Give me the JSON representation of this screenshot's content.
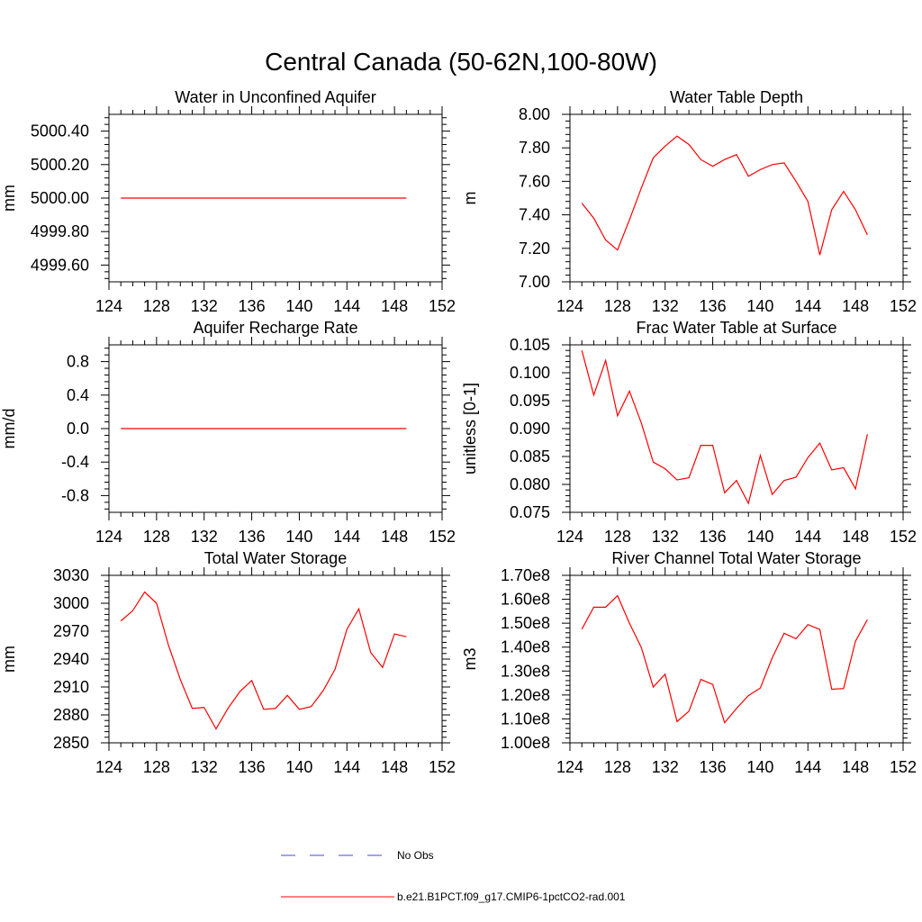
{
  "figure": {
    "title": "Central Canada (50-62N,100-80W)",
    "colors": {
      "series": "#ff0000",
      "obs": "#4a4ac8",
      "axis": "#000000"
    },
    "legend": [
      {
        "label": "No Obs",
        "style": "dashed",
        "color": "#4a4ac8"
      },
      {
        "label": "b.e21.B1PCT.f09_g17.CMIP6-1pctCO2-rad.001",
        "style": "solid",
        "color": "#ff0000"
      }
    ]
  },
  "chart_data": [
    {
      "type": "line",
      "title": "Water in Unconfined Aquifer",
      "xlabel": "",
      "ylabel": "mm",
      "xlim": [
        124,
        152
      ],
      "ylim": [
        4999.5,
        5000.5
      ],
      "xticks": [
        124,
        128,
        132,
        136,
        140,
        144,
        148,
        152
      ],
      "yticks": [
        4999.6,
        4999.8,
        5000.0,
        5000.2,
        5000.4
      ],
      "ytick_labels": [
        "4999.60",
        "4999.80",
        "5000.00",
        "5000.20",
        "5000.40"
      ],
      "x": [
        125,
        149
      ],
      "series": [
        {
          "values": [
            5000.0,
            5000.0
          ]
        }
      ]
    },
    {
      "type": "line",
      "title": "Water Table Depth",
      "xlabel": "",
      "ylabel": "m",
      "xlim": [
        124,
        152
      ],
      "ylim": [
        7.0,
        8.0
      ],
      "xticks": [
        124,
        128,
        132,
        136,
        140,
        144,
        148,
        152
      ],
      "yticks": [
        7.0,
        7.2,
        7.4,
        7.6,
        7.8,
        8.0
      ],
      "ytick_labels": [
        "7.00",
        "7.20",
        "7.40",
        "7.60",
        "7.80",
        "8.00"
      ],
      "x": [
        125,
        126,
        127,
        128,
        129,
        130,
        131,
        132,
        133,
        134,
        135,
        136,
        137,
        138,
        139,
        140,
        141,
        142,
        143,
        144,
        145,
        146,
        147,
        148,
        149
      ],
      "series": [
        {
          "values": [
            7.47,
            7.38,
            7.25,
            7.19,
            7.37,
            7.56,
            7.74,
            7.81,
            7.87,
            7.82,
            7.73,
            7.69,
            7.73,
            7.76,
            7.63,
            7.67,
            7.7,
            7.71,
            7.6,
            7.48,
            7.16,
            7.43,
            7.54,
            7.43,
            7.28
          ]
        }
      ]
    },
    {
      "type": "line",
      "title": "Aquifer Recharge Rate",
      "xlabel": "",
      "ylabel": "mm/d",
      "xlim": [
        124,
        152
      ],
      "ylim": [
        -1.0,
        1.0
      ],
      "xticks": [
        124,
        128,
        132,
        136,
        140,
        144,
        148,
        152
      ],
      "yticks": [
        -0.8,
        -0.4,
        0.0,
        0.4,
        0.8
      ],
      "ytick_labels": [
        "-0.8",
        "-0.4",
        "0.0",
        "0.4",
        "0.8"
      ],
      "x": [
        125,
        149
      ],
      "series": [
        {
          "values": [
            0.0,
            0.0
          ]
        }
      ]
    },
    {
      "type": "line",
      "title": "Frac Water Table at Surface",
      "xlabel": "",
      "ylabel": "unitless [0-1]",
      "xlim": [
        124,
        152
      ],
      "ylim": [
        0.075,
        0.105
      ],
      "xticks": [
        124,
        128,
        132,
        136,
        140,
        144,
        148,
        152
      ],
      "yticks": [
        0.075,
        0.08,
        0.085,
        0.09,
        0.095,
        0.1,
        0.105
      ],
      "ytick_labels": [
        "0.075",
        "0.080",
        "0.085",
        "0.090",
        "0.095",
        "0.100",
        "0.105"
      ],
      "x": [
        125,
        126,
        127,
        128,
        129,
        130,
        131,
        132,
        133,
        134,
        135,
        136,
        137,
        138,
        139,
        140,
        141,
        142,
        143,
        144,
        145,
        146,
        147,
        148,
        149
      ],
      "series": [
        {
          "values": [
            0.104,
            0.096,
            0.1022,
            0.0923,
            0.0967,
            0.091,
            0.084,
            0.0828,
            0.0808,
            0.0812,
            0.087,
            0.087,
            0.0785,
            0.0807,
            0.0766,
            0.0852,
            0.0782,
            0.0807,
            0.0813,
            0.0848,
            0.0874,
            0.0826,
            0.083,
            0.0792,
            0.089
          ]
        }
      ]
    },
    {
      "type": "line",
      "title": "Total Water Storage",
      "xlabel": "",
      "ylabel": "mm",
      "xlim": [
        124,
        152
      ],
      "ylim": [
        2850,
        3030
      ],
      "xticks": [
        124,
        128,
        132,
        136,
        140,
        144,
        148,
        152
      ],
      "yticks": [
        2850,
        2880,
        2910,
        2940,
        2970,
        3000,
        3030
      ],
      "ytick_labels": [
        "2850",
        "2880",
        "2910",
        "2940",
        "2970",
        "3000",
        "3030"
      ],
      "x": [
        125,
        126,
        127,
        128,
        129,
        130,
        131,
        132,
        133,
        134,
        135,
        136,
        137,
        138,
        139,
        140,
        141,
        142,
        143,
        144,
        145,
        146,
        147,
        148,
        149
      ],
      "series": [
        {
          "values": [
            2981,
            2992,
            3012,
            3000,
            2955,
            2918,
            2887,
            2888,
            2865,
            2887,
            2905,
            2917,
            2886,
            2887,
            2901,
            2886,
            2889,
            2906,
            2929,
            2972,
            2994,
            2947,
            2931,
            2967,
            2964
          ]
        }
      ]
    },
    {
      "type": "line",
      "title": "River Channel Total Water Storage",
      "xlabel": "",
      "ylabel": "m3",
      "xlim": [
        124,
        152
      ],
      "ylim": [
        100000000,
        170000000
      ],
      "xticks": [
        124,
        128,
        132,
        136,
        140,
        144,
        148,
        152
      ],
      "yticks": [
        100000000,
        110000000,
        120000000,
        130000000,
        140000000,
        150000000,
        160000000,
        170000000
      ],
      "ytick_labels": [
        "1.00e8",
        "1.10e8",
        "1.20e8",
        "1.30e8",
        "1.40e8",
        "1.50e8",
        "1.60e8",
        "1.70e8"
      ],
      "x": [
        125,
        126,
        127,
        128,
        129,
        130,
        131,
        132,
        133,
        134,
        135,
        136,
        137,
        138,
        139,
        140,
        141,
        142,
        143,
        144,
        145,
        146,
        147,
        148,
        149
      ],
      "series": [
        {
          "values": [
            147500000,
            156700000,
            156700000,
            161500000,
            150000000,
            139800000,
            123300000,
            128700000,
            108900000,
            113200000,
            126500000,
            124400000,
            108400000,
            114400000,
            119700000,
            122900000,
            135500000,
            145800000,
            143500000,
            149400000,
            147400000,
            122400000,
            122700000,
            142500000,
            151500000
          ]
        }
      ]
    }
  ]
}
